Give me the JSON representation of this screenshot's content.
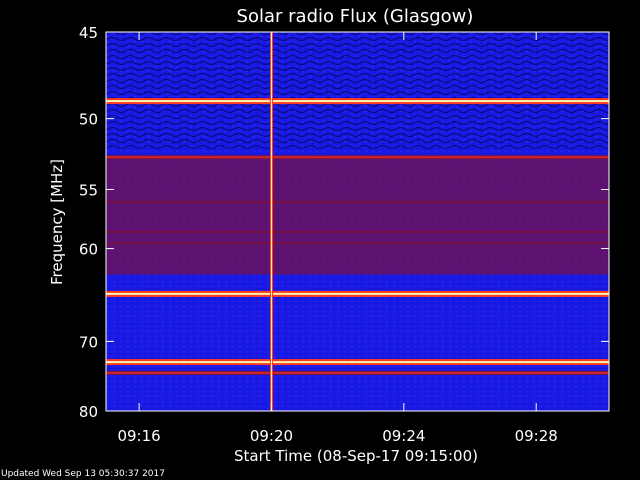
{
  "chart_data": {
    "type": "heatmap",
    "title": "Solar radio Flux (Glasgow)",
    "xlabel": "Start Time (08-Sep-17 09:15:00)",
    "ylabel": "Frequency [MHz]",
    "x_ticks": [
      "09:16",
      "09:20",
      "09:24",
      "09:28"
    ],
    "x_tick_minutes": [
      16,
      20,
      24,
      28
    ],
    "xlim_minutes": [
      15.0,
      30.2
    ],
    "y_ticks": [
      45,
      50,
      55,
      60,
      70,
      80
    ],
    "ylim": [
      45,
      80
    ],
    "y_scale": "reciprocal",
    "colormap": "red-temperature on blue background",
    "colors": {
      "background": "#000000",
      "low": "#1a1ae6",
      "mid": "#7a1040",
      "high": "#ff3b1f",
      "peak": "#fff2b0"
    },
    "bright_bands_mhz": [
      48.9,
      64.5,
      72.7
    ],
    "moderate_bands_mhz": [
      52.6,
      74.2
    ],
    "dim_bands_mhz": [
      56.0,
      58.5,
      59.5
    ],
    "burst_time_minutes": 20.0
  },
  "footer": {
    "updated": "Updated Wed Sep 13 05:30:37 2017"
  }
}
